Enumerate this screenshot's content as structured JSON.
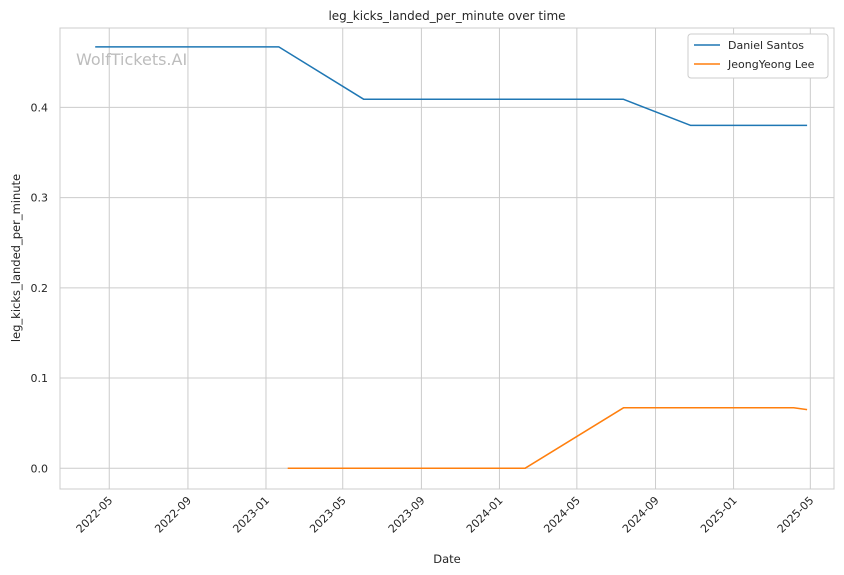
{
  "chart_data": {
    "type": "line",
    "title": "leg_kicks_landed_per_minute over time",
    "xlabel": "Date",
    "ylabel": "leg_kicks_landed_per_minute",
    "watermark": "WolfTickets.AI",
    "xlim": [
      "2022-02-13",
      "2025-06-07"
    ],
    "ylim": [
      -0.023,
      0.488
    ],
    "x_ticks": [
      "2022-05",
      "2022-09",
      "2023-01",
      "2023-05",
      "2023-09",
      "2024-01",
      "2024-05",
      "2024-09",
      "2025-01",
      "2025-05"
    ],
    "y_ticks": [
      0.0,
      0.1,
      0.2,
      0.3,
      0.4
    ],
    "y_tick_labels": [
      "0.0",
      "0.1",
      "0.2",
      "0.3",
      "0.4"
    ],
    "grid": true,
    "legend_position": "top-right",
    "series": [
      {
        "name": "Daniel Santos",
        "color": "#1f77b4",
        "x": [
          "2022-04-09",
          "2023-01-21",
          "2023-06-03",
          "2024-07-13",
          "2024-10-26",
          "2025-04-26"
        ],
        "y": [
          0.467,
          0.467,
          0.409,
          0.409,
          0.38,
          0.38
        ]
      },
      {
        "name": "JeongYeong Lee",
        "color": "#ff7f0e",
        "x": [
          "2023-02-04",
          "2024-02-10",
          "2024-07-13",
          "2025-04-05",
          "2025-04-26"
        ],
        "y": [
          0.0,
          0.0,
          0.067,
          0.067,
          0.065
        ]
      }
    ]
  }
}
